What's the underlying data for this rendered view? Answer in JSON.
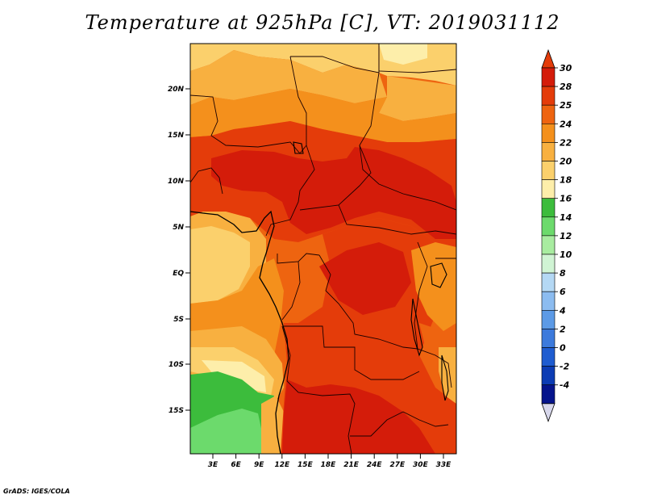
{
  "title": "Temperature at 925hPa [C], VT: 2019031112",
  "credit": "GrADS: IGES/COLA",
  "map": {
    "lat_labels": [
      "20N",
      "15N",
      "10N",
      "5N",
      "EQ",
      "5S",
      "10S",
      "15S"
    ],
    "lon_labels": [
      "3E",
      "6E",
      "9E",
      "12E",
      "15E",
      "18E",
      "21E",
      "24E",
      "27E",
      "30E",
      "33E"
    ]
  },
  "colorbar": {
    "labels": [
      "30",
      "28",
      "25",
      "24",
      "22",
      "20",
      "18",
      "16",
      "14",
      "12",
      "10",
      "8",
      "6",
      "4",
      "2",
      "0",
      "-2",
      "-4"
    ],
    "colors": [
      "#d41c0a",
      "#e43c0a",
      "#ee6410",
      "#f4901c",
      "#f8b040",
      "#fbd06c",
      "#fdeeaa",
      "#3cbc3c",
      "#6cda6c",
      "#a8eca0",
      "#d0f4d4",
      "#b4d8f4",
      "#8cbcf0",
      "#5c9ae6",
      "#3c7adc",
      "#1e5cd0",
      "#0c3cb4",
      "#05148c"
    ],
    "top_color": "#e43c0a",
    "bottom_color": "#d8d8ec"
  },
  "field_colors": {
    "c30": "#d41c0a",
    "c28": "#e43c0a",
    "c25": "#ee6410",
    "c24": "#f4901c",
    "c22": "#f8b040",
    "c20": "#fbd06c",
    "c18": "#fdeeaa",
    "c16": "#3cbc3c",
    "c14": "#6cda6c"
  }
}
